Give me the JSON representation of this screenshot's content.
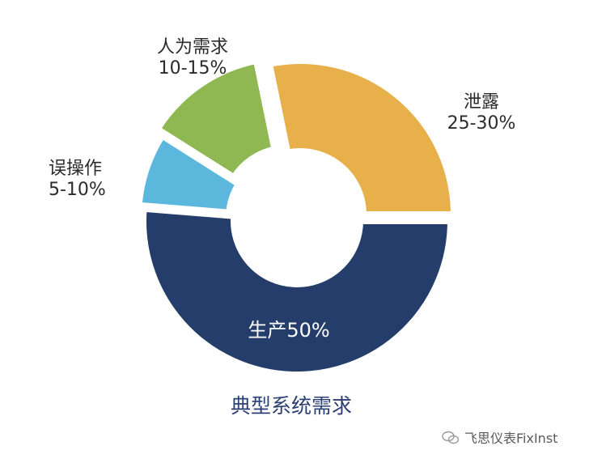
{
  "chart_data": {
    "type": "pie",
    "subtitle": "典型系统需求",
    "slices": [
      {
        "name": "生产",
        "range_text": "50%",
        "value": 50,
        "color": "#243d6b"
      },
      {
        "name": "误操作",
        "range_text": "5-10%",
        "value": 7.5,
        "color": "#5bb8dc"
      },
      {
        "name": "人为需求",
        "range_text": "10-15%",
        "value": 12.5,
        "color": "#8fb852"
      },
      {
        "name": "泄露",
        "range_text": "25-30%",
        "value": 27.5,
        "color": "#e7b04a"
      }
    ]
  },
  "watermark": {
    "text": "飞思仪表FixInst",
    "icon": "wechat-bubble-icon"
  }
}
